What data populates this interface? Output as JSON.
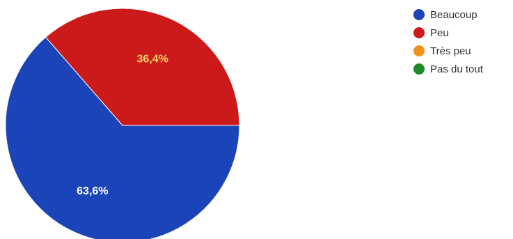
{
  "chart_data": {
    "type": "pie",
    "series": [
      {
        "name": "Beaucoup",
        "value": 63.6,
        "label": "63,6%",
        "color": "#1a44b8",
        "label_color": "#ffffff"
      },
      {
        "name": "Peu",
        "value": 36.4,
        "label": "36,4%",
        "color": "#cc1a1a",
        "label_color": "#f3d36b"
      },
      {
        "name": "Très peu",
        "value": 0,
        "label": "",
        "color": "#f2911b",
        "label_color": "#ffffff"
      },
      {
        "name": "Pas du tout",
        "value": 0,
        "label": "",
        "color": "#1e8a2c",
        "label_color": "#ffffff"
      }
    ],
    "legend_position": "right"
  }
}
